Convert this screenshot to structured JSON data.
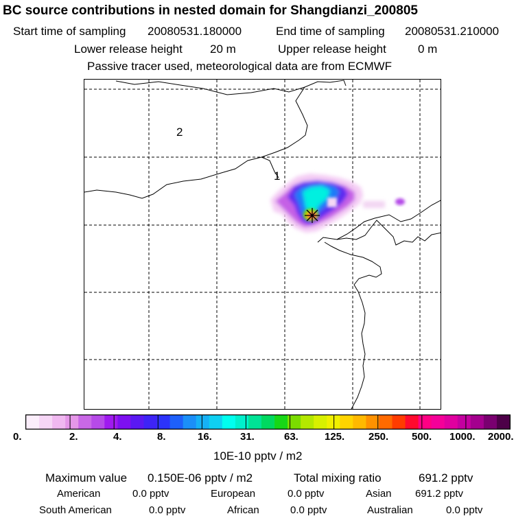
{
  "header": {
    "title": "BC  source contributions in nested domain for Shangdianzi_200805",
    "start_label": "Start time of sampling",
    "start_value": "20080531.180000",
    "end_label": "End time of sampling",
    "end_value": "20080531.210000",
    "lower_label": "Lower release height",
    "lower_value": "20 m",
    "upper_label": "Upper release height",
    "upper_value": "0 m",
    "note": "Passive tracer used, meteorological data are from ECMWF"
  },
  "map": {
    "region_labels": [
      "2",
      "1"
    ],
    "receptor": "Shangdianzi"
  },
  "colorbar": {
    "colors": [
      "#fbeefb",
      "#f6d6f6",
      "#f0b8f0",
      "#e597e8",
      "#c968e6",
      "#b64ae8",
      "#9f1af0",
      "#7d10f0",
      "#5a19f2",
      "#3e24f6",
      "#2c33fa",
      "#1e60fa",
      "#1b8ff8",
      "#16b1f6",
      "#0fd0f2",
      "#00ffef",
      "#00f0cc",
      "#00e396",
      "#00d960",
      "#17d717",
      "#7bdc00",
      "#b4e800",
      "#d8f000",
      "#f0f000",
      "#ffd400",
      "#ffb900",
      "#ff9200",
      "#ff6a00",
      "#ff3c00",
      "#ff0a2e",
      "#ff0084",
      "#f50099",
      "#e0009f",
      "#c400a0",
      "#a4008e",
      "#7a0070",
      "#4d0048"
    ],
    "ticks": [
      "0.",
      "2.",
      "4.",
      "8.",
      "16.",
      "31.",
      "63.",
      "125.",
      "250.",
      "500.",
      "1000.",
      "2000."
    ],
    "units": "10E-10 pptv / m2"
  },
  "stats": {
    "max_label": "Maximum value",
    "max_value": "0.150E-06 pptv / m2",
    "total_label": "Total mixing ratio",
    "total_value": "691.2 pptv",
    "american_label": "American",
    "american_value": "0.0 pptv",
    "european_label": "European",
    "european_value": "0.0 pptv",
    "asian_label": "Asian",
    "asian_value": "691.2 pptv",
    "south_american_label": "South American",
    "south_american_value": "0.0 pptv",
    "african_label": "African",
    "african_value": "0.0 pptv",
    "australian_label": "Australian",
    "australian_value": "0.0 pptv"
  }
}
